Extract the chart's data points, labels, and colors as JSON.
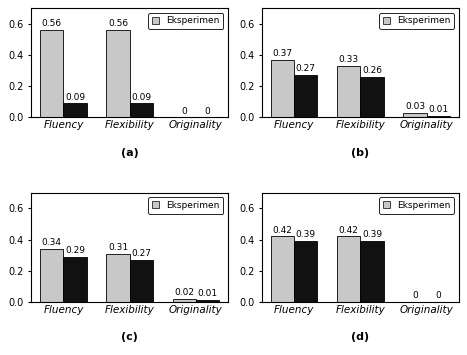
{
  "subplots": [
    {
      "label": "(a)",
      "categories": [
        "Fluency",
        "Flexibility",
        "Originality"
      ],
      "eksperimen": [
        0.56,
        0.56,
        0
      ],
      "kontrol": [
        0.09,
        0.09,
        0
      ]
    },
    {
      "label": "(b)",
      "categories": [
        "Fluency",
        "Flexibility",
        "Originality"
      ],
      "eksperimen": [
        0.37,
        0.33,
        0.03
      ],
      "kontrol": [
        0.27,
        0.26,
        0.01
      ]
    },
    {
      "label": "(c)",
      "categories": [
        "Fluency",
        "Flexibility",
        "Originality"
      ],
      "eksperimen": [
        0.34,
        0.31,
        0.02
      ],
      "kontrol": [
        0.29,
        0.27,
        0.01
      ]
    },
    {
      "label": "(d)",
      "categories": [
        "Fluency",
        "Flexibility",
        "Originality"
      ],
      "eksperimen": [
        0.42,
        0.42,
        0
      ],
      "kontrol": [
        0.39,
        0.39,
        0
      ]
    }
  ],
  "ylim": [
    0,
    0.7
  ],
  "yticks": [
    0,
    0.2,
    0.4,
    0.6
  ],
  "bar_width": 0.35,
  "color_eksperimen": "#c8c8c8",
  "color_kontrol": "#111111",
  "legend_label_eksperimen": "Eksperimen",
  "label_fontsize": 7.5,
  "tick_fontsize": 7,
  "value_fontsize": 6.5,
  "legend_fontsize": 6.5
}
